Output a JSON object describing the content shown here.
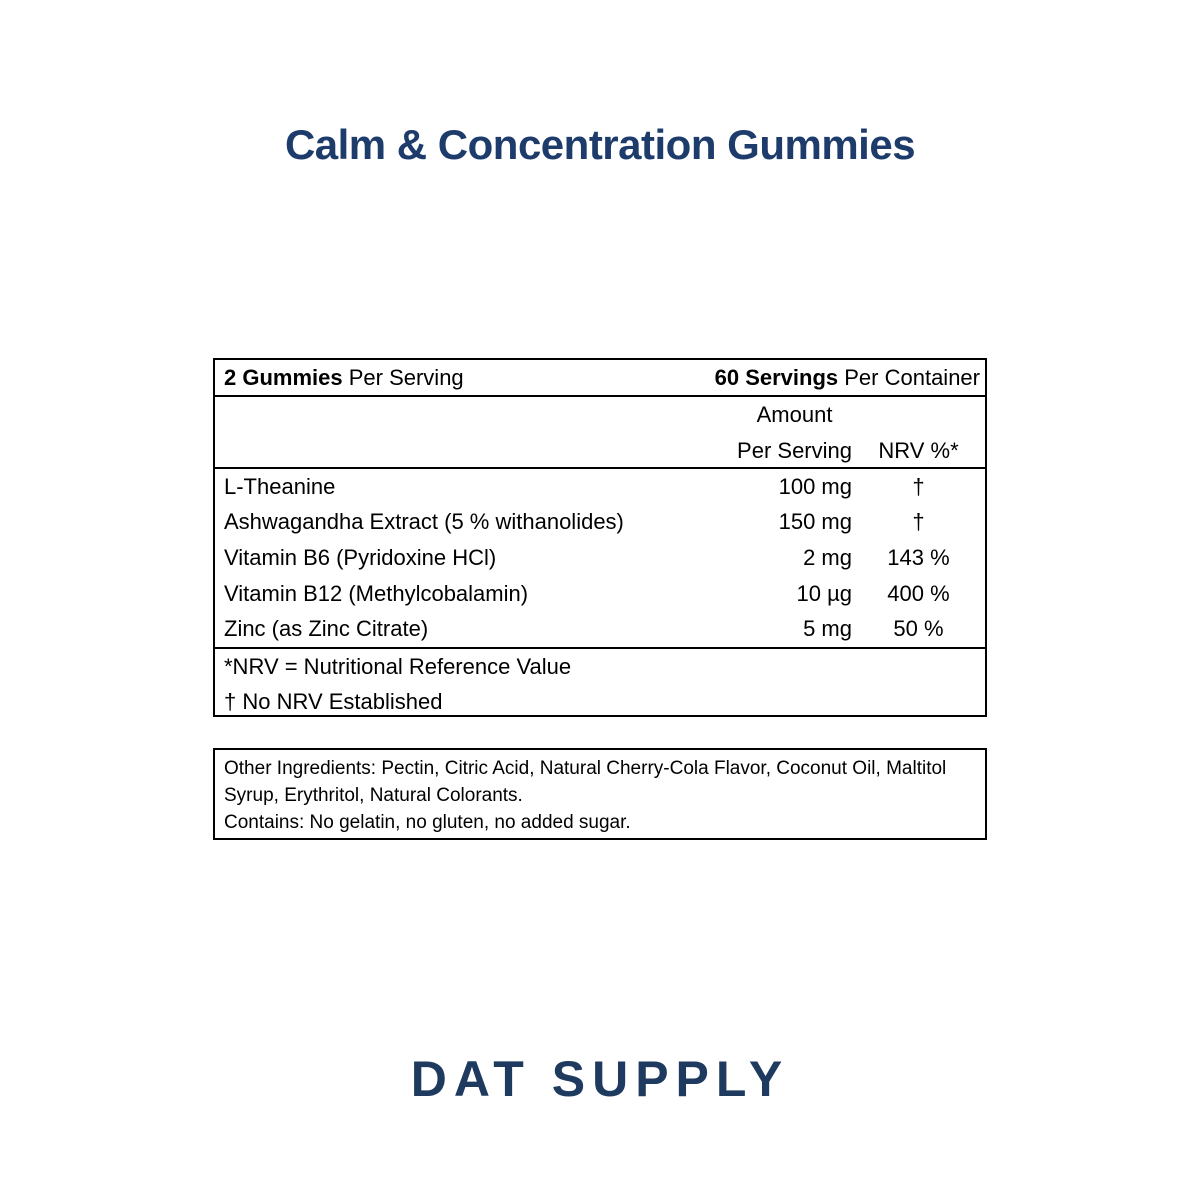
{
  "title": "Calm & Concentration Gummies",
  "supplement_table": {
    "serving_line": {
      "left_bold": "2 Gummies",
      "left_regular": " Per Serving",
      "right_bold": "60 Servings",
      "right_regular": " Per Container"
    },
    "column_headers": {
      "amount_line1": "Amount",
      "amount_line2": "Per Serving",
      "nrv": "NRV %*"
    },
    "rows": [
      {
        "name": "L-Theanine",
        "amount": "100 mg",
        "nrv": "†"
      },
      {
        "name": "Ashwagandha Extract (5 % withanolides)",
        "amount": "150 mg",
        "nrv": "†"
      },
      {
        "name": "Vitamin B6 (Pyridoxine HCl)",
        "amount": "2 mg",
        "nrv": "143 %"
      },
      {
        "name": "Vitamin B12 (Methylcobalamin)",
        "amount": "10 µg",
        "nrv": "400 %"
      },
      {
        "name": "Zinc (as Zinc Citrate)",
        "amount": "5 mg",
        "nrv": "50 %"
      }
    ],
    "footnotes": [
      "*NRV = Nutritional Reference Value",
      "† No NRV Established"
    ]
  },
  "other_ingredients_box": {
    "ingredients_text": "Other Ingredients: Pectin, Citric Acid, Natural Cherry-Cola Flavor, Coconut Oil, Maltitol Syrup, Erythritol, Natural Colorants.",
    "contains_text": "Contains: No gelatin, no gluten, no added sugar."
  },
  "brand": {
    "logo_text": "DAT SUPPLY"
  },
  "colors": {
    "title": "#1d3c6b",
    "logo": "#1f3a5f",
    "table_text": "#000000",
    "border": "#000000",
    "background": "#ffffff"
  }
}
